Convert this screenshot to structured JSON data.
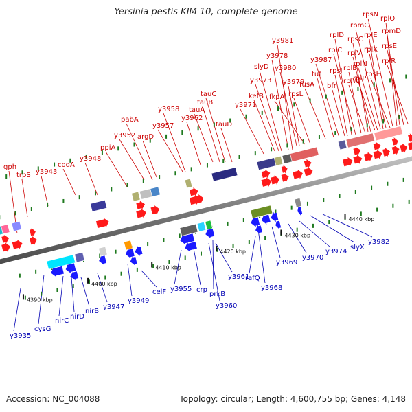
{
  "title": "Yersinia pestis KIM 10, complete genome",
  "footer": {
    "accession": "Accession: NC_004088",
    "topology": "Topology: circular; Length: 4,600,755 bp; Genes: 4,148"
  },
  "colors": {
    "top_label": "#cc0000",
    "bottom_label": "#0000b3",
    "forward_gene": "#ff1a1a",
    "reverse_gene": "#1a1aff",
    "backbone": "#808080",
    "tick_mark": "#1f7a1f"
  },
  "scale_ticks": [
    "4390 kbp",
    "4400 kbp",
    "4410 kbp",
    "4420 kbp",
    "4430 kbp",
    "4440 kbp"
  ],
  "top_genes": [
    "gph",
    "trpS",
    "y3943",
    "codA",
    "y3948",
    "ppiA",
    "y3952",
    "pabA",
    "argD",
    "y3957",
    "y3958",
    "y3962",
    "tauA",
    "tauB",
    "tauC",
    "tauD",
    "y3971",
    "kefB",
    "y3973",
    "slyD",
    "y3978",
    "y3981",
    "y3979",
    "y3980",
    "fkpA",
    "rpsL",
    "fusA",
    "tuf",
    "y3987",
    "bfr",
    "rpsJ",
    "rplD",
    "rplC",
    "rplB",
    "rplW",
    "rpsC",
    "rplV",
    "rplP",
    "rplN",
    "rpmC",
    "rplE",
    "rplX",
    "rpsH",
    "rpsN",
    "rplO",
    "rpmD",
    "rpsE",
    "rplR"
  ],
  "bottom_genes": [
    "y3935",
    "cysG",
    "nirC",
    "nirD",
    "nirB",
    "y3947",
    "y3949",
    "celF",
    "y3955",
    "crp",
    "prkB",
    "y3960",
    "y3961",
    "rafQ",
    "y3968",
    "y3969",
    "y3970",
    "y3974",
    "slyX",
    "y3982"
  ]
}
